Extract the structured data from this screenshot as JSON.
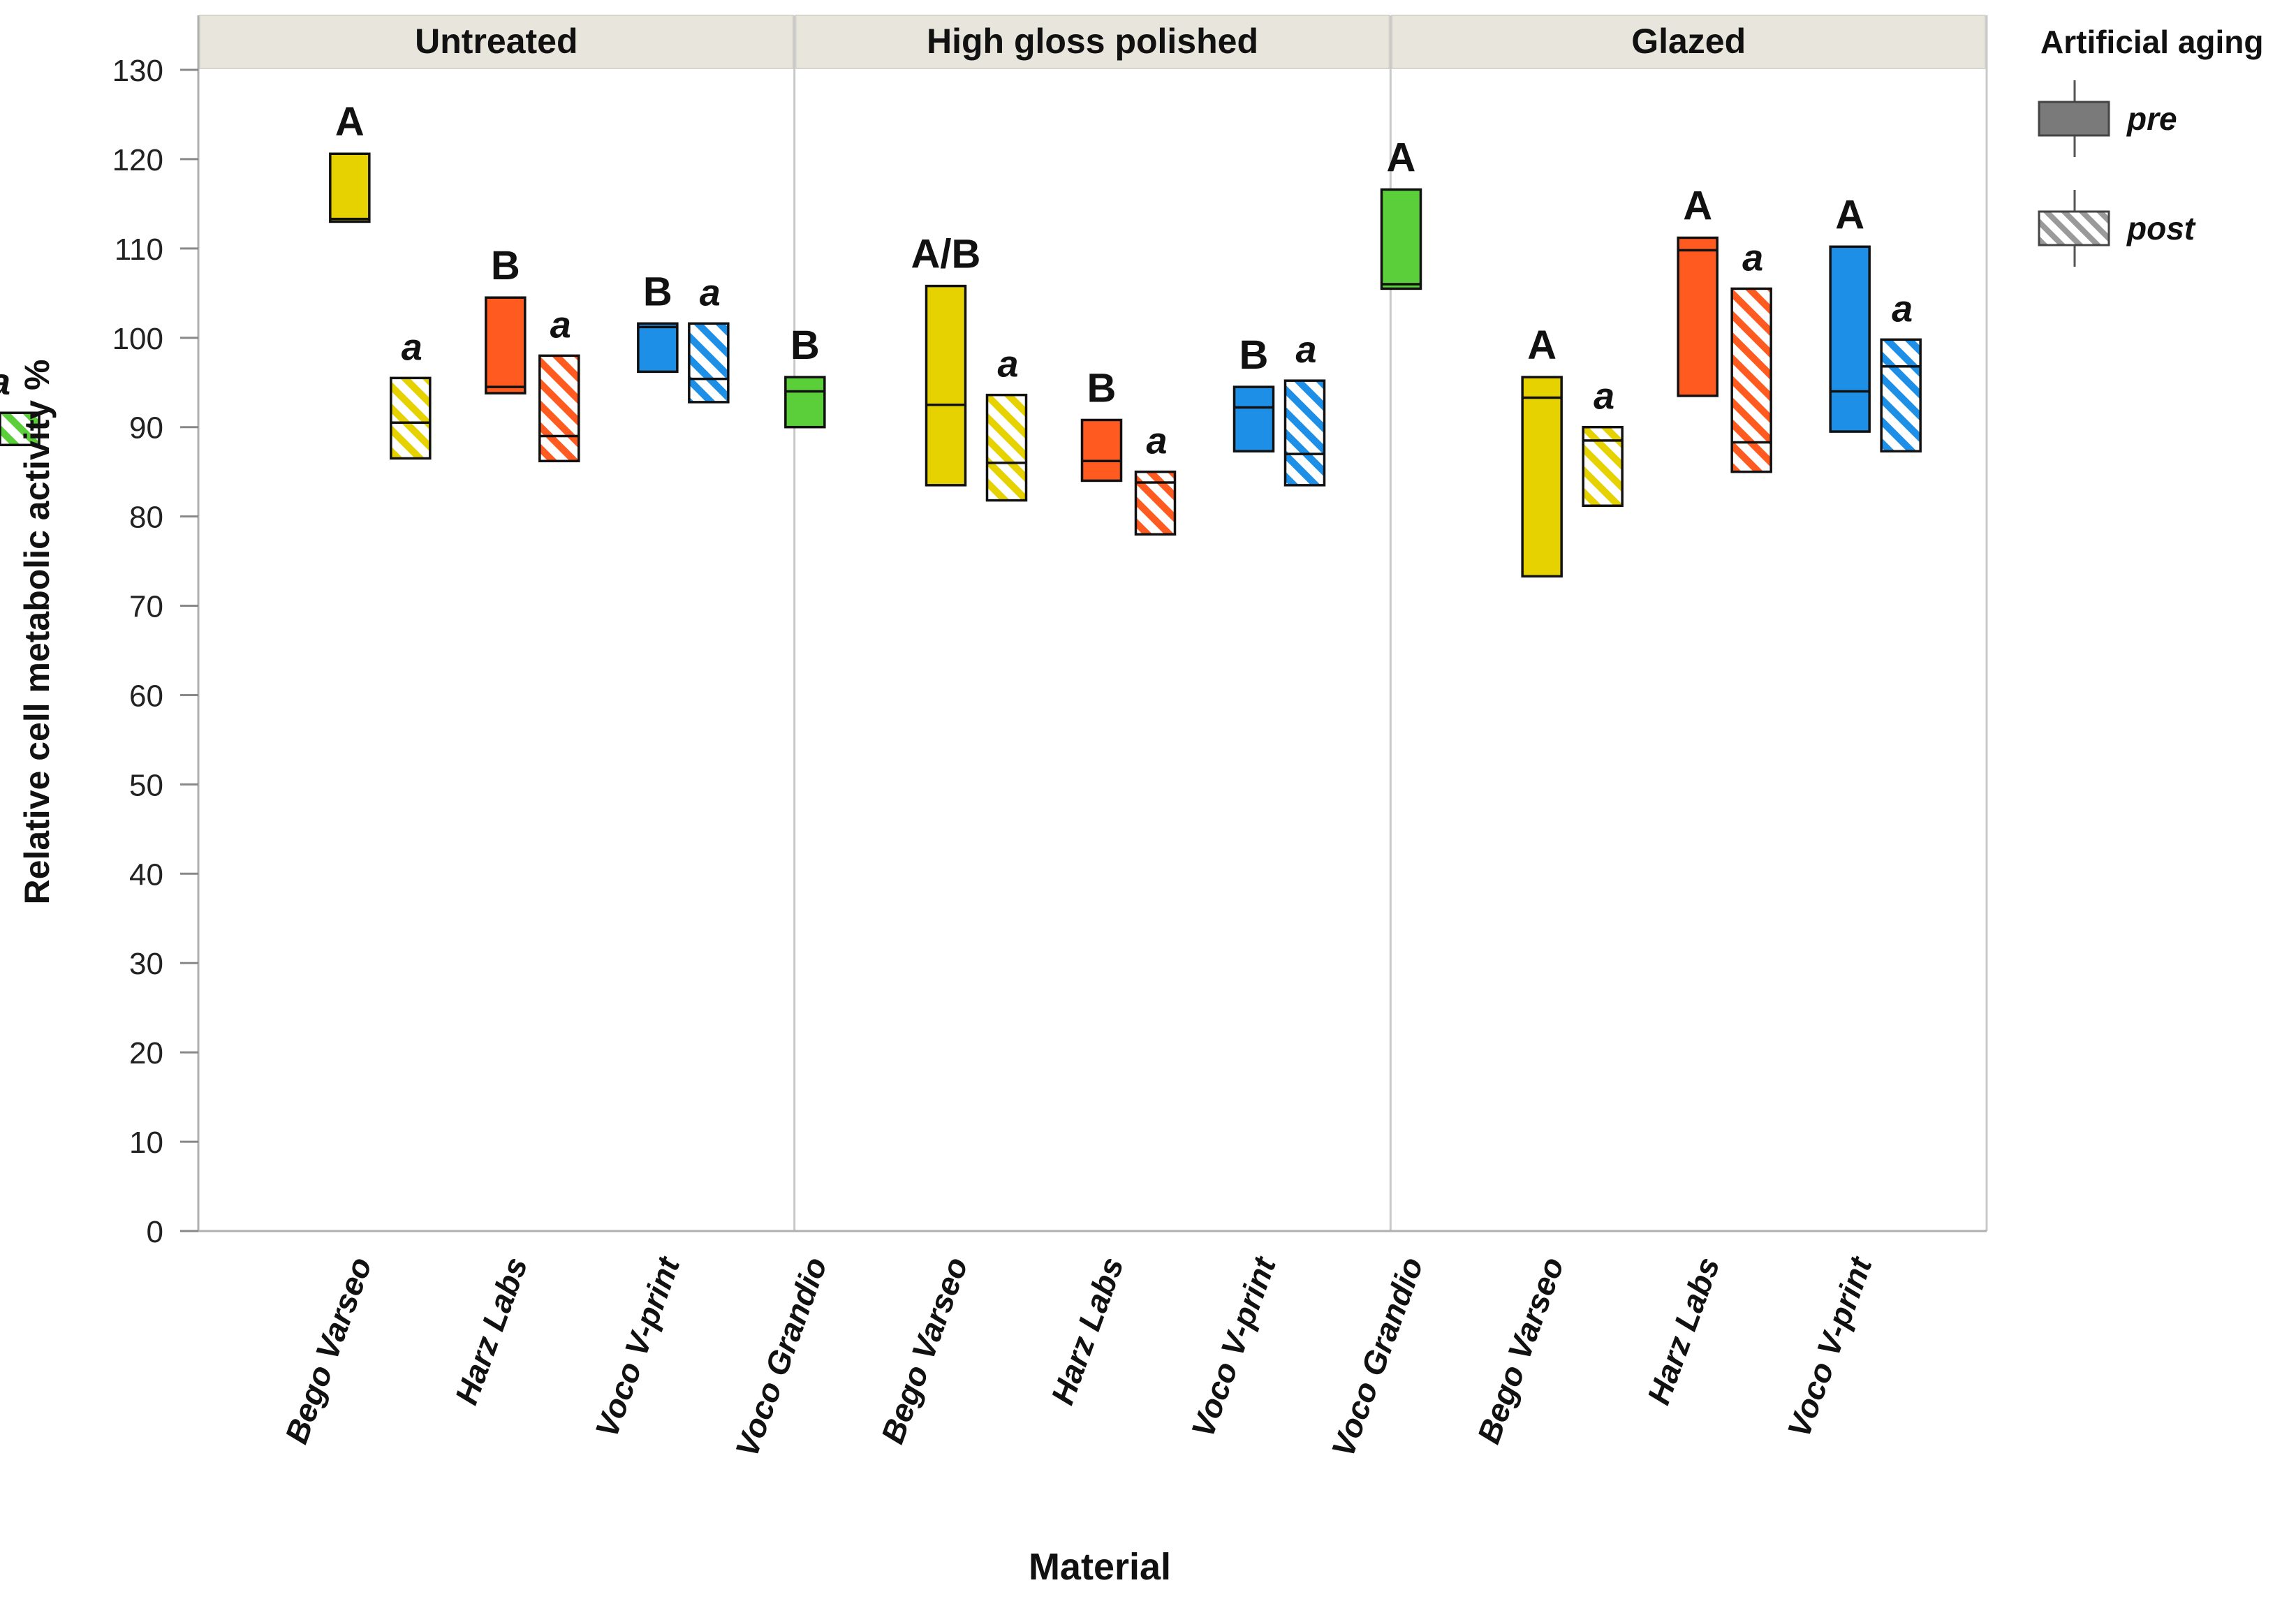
{
  "chart_data": {
    "type": "boxplot",
    "ylabel": "Relative cell metabolic activity %",
    "xlabel": "Material",
    "ylim": [
      0,
      130
    ],
    "yticks": [
      0,
      10,
      20,
      30,
      40,
      50,
      60,
      70,
      80,
      90,
      100,
      110,
      120,
      130
    ],
    "grid": false,
    "legend": {
      "title": "Artificial aging",
      "position": "right",
      "entries": [
        {
          "label": "pre",
          "pattern": "solid"
        },
        {
          "label": "post",
          "pattern": "hatched"
        }
      ]
    },
    "colors": {
      "Bego Varseo": "#e6d200",
      "Harz Labs": "#ff5a1f",
      "Voco V-print": "#1e8fe6",
      "Voco Grandio": "#5bcf3a"
    },
    "panels": [
      {
        "title": "Untreated",
        "materials": [
          "Bego Varseo",
          "Harz Labs",
          "Voco V-print",
          "Voco Grandio"
        ],
        "boxes": [
          {
            "material": "Bego Varseo",
            "aging": "pre",
            "low": 113,
            "median": 113.3,
            "high": 120.6,
            "letter": "A"
          },
          {
            "material": "Bego Varseo",
            "aging": "post",
            "low": 86.5,
            "median": 90.5,
            "high": 95.5,
            "letter": "a"
          },
          {
            "material": "Harz Labs",
            "aging": "pre",
            "low": 93.8,
            "median": 94.5,
            "high": 104.5,
            "letter": "B"
          },
          {
            "material": "Harz Labs",
            "aging": "post",
            "low": 86.2,
            "median": 89,
            "high": 98,
            "letter": "a"
          },
          {
            "material": "Voco V-print",
            "aging": "pre",
            "low": 96.2,
            "median": 101.2,
            "high": 101.6,
            "letter": "B"
          },
          {
            "material": "Voco V-print",
            "aging": "post",
            "low": 92.8,
            "median": 95.4,
            "high": 101.6,
            "letter": "a"
          },
          {
            "material": "Voco Grandio",
            "aging": "pre",
            "low": 90,
            "median": 94,
            "high": 95.6,
            "letter": "B"
          }
        ]
      },
      {
        "title": "High gloss polished",
        "materials": [
          "Bego Varseo",
          "Harz Labs",
          "Voco V-print",
          "Voco Grandio"
        ],
        "boxes": [
          {
            "material": "Bego Varseo",
            "aging": "pre",
            "low": 83.5,
            "median": 92.5,
            "high": 105.8,
            "letter": "A/B"
          },
          {
            "material": "Bego Varseo",
            "aging": "post",
            "low": 81.8,
            "median": 86,
            "high": 93.6,
            "letter": "a"
          },
          {
            "material": "Harz Labs",
            "aging": "pre",
            "low": 84,
            "median": 86.2,
            "high": 90.8,
            "letter": "B"
          },
          {
            "material": "Harz Labs",
            "aging": "post",
            "low": 78,
            "median": 83.8,
            "high": 85,
            "letter": "a"
          },
          {
            "material": "Voco V-print",
            "aging": "pre",
            "low": 87.3,
            "median": 92.2,
            "high": 94.5,
            "letter": "B"
          },
          {
            "material": "Voco V-print",
            "aging": "post",
            "low": 83.5,
            "median": 87,
            "high": 95.2,
            "letter": "a"
          },
          {
            "material": "Voco Grandio",
            "aging": "pre",
            "low": 105.5,
            "median": 106,
            "high": 116.6,
            "letter": "A"
          },
          {
            "material": "Voco Grandio",
            "aging": "post",
            "low": 88,
            "median": 90,
            "high": 91.6,
            "letter": "a"
          }
        ]
      },
      {
        "title": "Glazed",
        "materials": [
          "Bego Varseo",
          "Harz Labs",
          "Voco V-print"
        ],
        "boxes": [
          {
            "material": "Bego Varseo",
            "aging": "pre",
            "low": 73.3,
            "median": 93.3,
            "high": 95.6,
            "letter": "A"
          },
          {
            "material": "Bego Varseo",
            "aging": "post",
            "low": 81.2,
            "median": 88.5,
            "high": 90,
            "letter": "a"
          },
          {
            "material": "Harz Labs",
            "aging": "pre",
            "low": 93.5,
            "median": 109.8,
            "high": 111.2,
            "letter": "A"
          },
          {
            "material": "Harz Labs",
            "aging": "post",
            "low": 85,
            "median": 88.3,
            "high": 105.5,
            "letter": "a"
          },
          {
            "material": "Voco V-print",
            "aging": "pre",
            "low": 89.5,
            "median": 94,
            "high": 110.2,
            "letter": "A"
          },
          {
            "material": "Voco V-print",
            "aging": "post",
            "low": 87.3,
            "median": 96.8,
            "high": 99.8,
            "letter": "a"
          }
        ]
      }
    ]
  }
}
